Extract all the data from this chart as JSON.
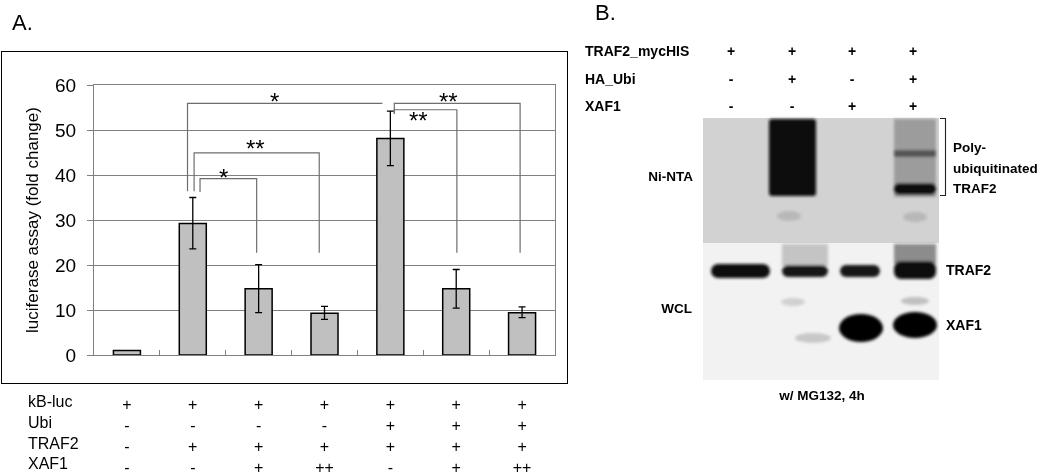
{
  "chart_data": [
    {
      "type": "bar",
      "title": "A.",
      "ylabel": "luciferase assay (fold change)",
      "categories": [
        "+\n-\n-\n-",
        "+\n-\n+\n-",
        "+\n-\n+\n+",
        "+\n-\n+\n++",
        "+\n+\n+\n-",
        "+\n+\n+\n+",
        "+\n+\n+\n++"
      ],
      "values": [
        1,
        29.2,
        14.7,
        9.3,
        48.1,
        14.7,
        9.4
      ],
      "color": "#c0c0c0",
      "errors": [
        null,
        [
          23.6,
          35
        ],
        [
          9.4,
          20.1
        ],
        [
          7.9,
          10.8
        ],
        [
          42.1,
          54.2
        ],
        [
          10.4,
          19
        ],
        [
          8.3,
          10.7
        ]
      ],
      "ylim": [
        0,
        60
      ],
      "yticks": [
        0,
        10,
        20,
        30,
        40,
        50,
        60
      ],
      "grid": "y",
      "annotations": [
        "*",
        "**",
        "**",
        "**",
        "*",
        "kB-luc\nUbi\nTRAF2\nXAF1"
      ]
    },
    {
      "type": "other",
      "title": "B.",
      "annotations": [
        "TRAF2_mycHIS\nHA_Ubi\nXAF1",
        "+\n-\n-",
        "+\n+\n-",
        "+\n-\n+",
        "+\n+\n+",
        "Ni-NTA",
        "WCL",
        "Poly-\nubiquitinated\nTRAF2",
        "TRAF2",
        "XAF1",
        "w/ MG132, 4h"
      ]
    }
  ]
}
